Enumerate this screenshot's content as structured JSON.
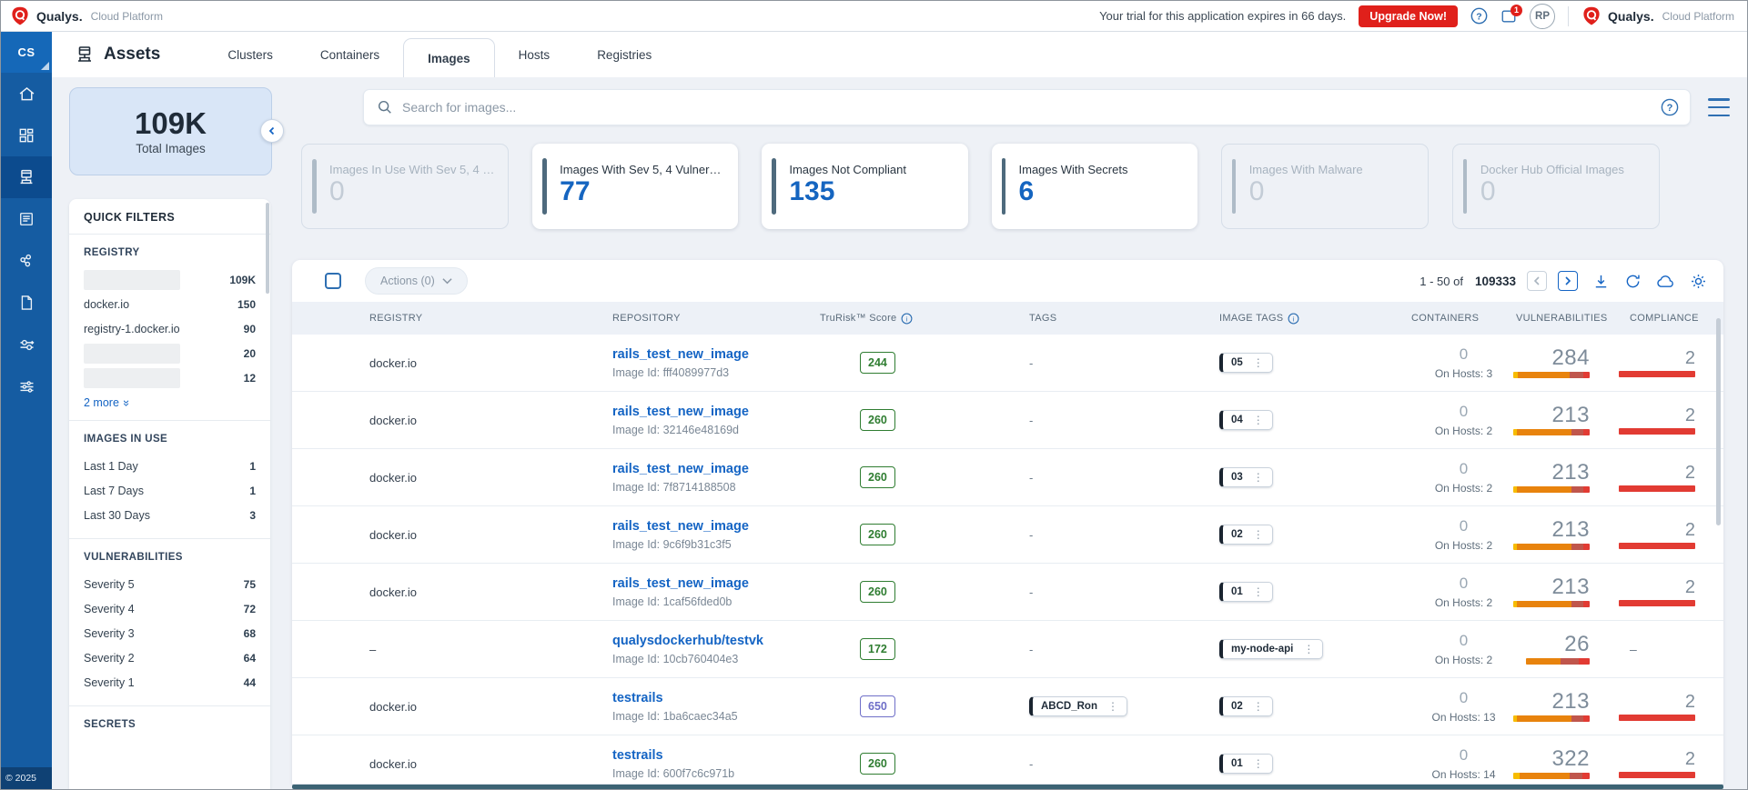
{
  "top_bar": {
    "brand": "Qualys.",
    "brand_suffix": "Cloud Platform",
    "trial_text": "Your trial for this application expires in 66 days.",
    "upgrade_label": "Upgrade Now!",
    "notification_count": "1",
    "avatar_initials": "RP",
    "brand_right": "Qualys.",
    "brand_right_suffix": "Cloud Platform"
  },
  "sidebar": {
    "module_label": "CS",
    "copyright": "© 2025",
    "items": [
      "home",
      "dashboard",
      "assets",
      "reports",
      "policies",
      "documents",
      "pipeline",
      "configurations"
    ]
  },
  "page_header": {
    "title": "Assets",
    "tabs": [
      {
        "label": "Clusters",
        "active": false
      },
      {
        "label": "Containers",
        "active": false
      },
      {
        "label": "Images",
        "active": true
      },
      {
        "label": "Hosts",
        "active": false
      },
      {
        "label": "Registries",
        "active": false
      }
    ]
  },
  "summary": {
    "total_value": "109K",
    "total_label": "Total Images"
  },
  "search": {
    "placeholder": "Search for images..."
  },
  "stat_cards": [
    {
      "label": "Images In Use With Sev 5, 4 …",
      "value": "0",
      "muted": true
    },
    {
      "label": "Images With Sev 5, 4 Vulner…",
      "value": "77",
      "muted": false
    },
    {
      "label": "Images Not Compliant",
      "value": "135",
      "muted": false
    },
    {
      "label": "Images With Secrets",
      "value": "6",
      "muted": false
    },
    {
      "label": "Images With Malware",
      "value": "0",
      "muted": true
    },
    {
      "label": "Docker Hub Official Images",
      "value": "0",
      "muted": true
    }
  ],
  "quick_filters": {
    "title": "QUICK FILTERS",
    "sections": [
      {
        "title": "REGISTRY",
        "items": [
          {
            "label": "",
            "redacted": true,
            "count": "109K"
          },
          {
            "label": "docker.io",
            "redacted": false,
            "count": "150"
          },
          {
            "label": "registry-1.docker.io",
            "redacted": false,
            "count": "90"
          },
          {
            "label": "",
            "redacted": true,
            "count": "20"
          },
          {
            "label": "",
            "redacted": true,
            "count": "12"
          }
        ],
        "more_label": "2 more"
      },
      {
        "title": "IMAGES IN USE",
        "items": [
          {
            "label": "Last 1 Day",
            "redacted": false,
            "count": "1"
          },
          {
            "label": "Last 7 Days",
            "redacted": false,
            "count": "1"
          },
          {
            "label": "Last 30 Days",
            "redacted": false,
            "count": "3"
          }
        ]
      },
      {
        "title": "VULNERABILITIES",
        "items": [
          {
            "label": "Severity 5",
            "redacted": false,
            "count": "75"
          },
          {
            "label": "Severity 4",
            "redacted": false,
            "count": "72"
          },
          {
            "label": "Severity 3",
            "redacted": false,
            "count": "68"
          },
          {
            "label": "Severity 2",
            "redacted": false,
            "count": "64"
          },
          {
            "label": "Severity 1",
            "redacted": false,
            "count": "44"
          }
        ]
      },
      {
        "title": "SECRETS",
        "items": []
      }
    ]
  },
  "table": {
    "actions_label": "Actions (0)",
    "pagination": {
      "range": "1 - 50 of",
      "total": "109333"
    },
    "columns": [
      {
        "label": "REGISTRY",
        "info": false
      },
      {
        "label": "REPOSITORY",
        "info": false
      },
      {
        "label": "TruRisk™ Score",
        "info": true
      },
      {
        "label": "TAGS",
        "info": false
      },
      {
        "label": "IMAGE TAGS",
        "info": true
      },
      {
        "label": "CONTAINERS",
        "info": false
      },
      {
        "label": "VULNERABILITIES",
        "info": false
      },
      {
        "label": "COMPLIANCE",
        "info": false
      }
    ],
    "rows": [
      {
        "registry": "docker.io",
        "repository": "rails_test_new_image",
        "image_id": "Image Id: fff4089977d3",
        "score": "244",
        "score_color": "green",
        "tag_chip": null,
        "tags_dash": "-",
        "image_tag": "05",
        "containers": "0",
        "on_hosts": "On Hosts: 3",
        "vulns": "284",
        "vuln_bar": [
          [
            "#F7BC00",
            5
          ],
          [
            "#E8830D",
            57
          ],
          [
            "#C0564C",
            15
          ],
          [
            "#E23B33",
            7
          ]
        ],
        "compliance": "2"
      },
      {
        "registry": "docker.io",
        "repository": "rails_test_new_image",
        "image_id": "Image Id: 32146e48169d",
        "score": "260",
        "score_color": "green",
        "tag_chip": null,
        "tags_dash": "-",
        "image_tag": "04",
        "containers": "0",
        "on_hosts": "On Hosts: 2",
        "vulns": "213",
        "vuln_bar": [
          [
            "#F7BC00",
            4
          ],
          [
            "#E8830D",
            60
          ],
          [
            "#C0564C",
            13
          ],
          [
            "#E23B33",
            7
          ]
        ],
        "compliance": "2"
      },
      {
        "registry": "docker.io",
        "repository": "rails_test_new_image",
        "image_id": "Image Id: 7f8714188508",
        "score": "260",
        "score_color": "green",
        "tag_chip": null,
        "tags_dash": "-",
        "image_tag": "03",
        "containers": "0",
        "on_hosts": "On Hosts: 2",
        "vulns": "213",
        "vuln_bar": [
          [
            "#F7BC00",
            4
          ],
          [
            "#E8830D",
            60
          ],
          [
            "#C0564C",
            13
          ],
          [
            "#E23B33",
            7
          ]
        ],
        "compliance": "2"
      },
      {
        "registry": "docker.io",
        "repository": "rails_test_new_image",
        "image_id": "Image Id: 9c6f9b31c3f5",
        "score": "260",
        "score_color": "green",
        "tag_chip": null,
        "tags_dash": "-",
        "image_tag": "02",
        "containers": "0",
        "on_hosts": "On Hosts: 2",
        "vulns": "213",
        "vuln_bar": [
          [
            "#F7BC00",
            4
          ],
          [
            "#E8830D",
            60
          ],
          [
            "#C0564C",
            13
          ],
          [
            "#E23B33",
            7
          ]
        ],
        "compliance": "2"
      },
      {
        "registry": "docker.io",
        "repository": "rails_test_new_image",
        "image_id": "Image Id: 1caf56fded0b",
        "score": "260",
        "score_color": "green",
        "tag_chip": null,
        "tags_dash": "-",
        "image_tag": "01",
        "containers": "0",
        "on_hosts": "On Hosts: 2",
        "vulns": "213",
        "vuln_bar": [
          [
            "#F7BC00",
            4
          ],
          [
            "#E8830D",
            60
          ],
          [
            "#C0564C",
            13
          ],
          [
            "#E23B33",
            7
          ]
        ],
        "compliance": "2"
      },
      {
        "registry": "–",
        "repository": "qualysdockerhub/testvk",
        "image_id": "Image Id: 10cb760404e3",
        "score": "172",
        "score_color": "green",
        "tag_chip": null,
        "tags_dash": "-",
        "image_tag": "my-node-api",
        "containers": "0",
        "on_hosts": "On Hosts: 2",
        "vulns": "26",
        "vuln_bar": [
          [
            "#E8830D",
            38
          ],
          [
            "#C0564C",
            20
          ],
          [
            "#E23B33",
            12
          ]
        ],
        "compliance": "–"
      },
      {
        "registry": "docker.io",
        "repository": "testrails",
        "image_id": "Image Id: 1ba6caec34a5",
        "score": "650",
        "score_color": "purple",
        "tag_chip": "ABCD_Ron",
        "tags_dash": "",
        "image_tag": "02",
        "containers": "0",
        "on_hosts": "On Hosts: 13",
        "vulns": "213",
        "vuln_bar": [
          [
            "#F7BC00",
            4
          ],
          [
            "#E8830D",
            60
          ],
          [
            "#C0564C",
            13
          ],
          [
            "#E23B33",
            7
          ]
        ],
        "compliance": "2"
      },
      {
        "registry": "docker.io",
        "repository": "testrails",
        "image_id": "Image Id: 600f7c6c971b",
        "score": "260",
        "score_color": "green",
        "tag_chip": null,
        "tags_dash": "-",
        "image_tag": "01",
        "containers": "0",
        "on_hosts": "On Hosts: 14",
        "vulns": "322",
        "vuln_bar": [
          [
            "#F7BC00",
            7
          ],
          [
            "#E8830D",
            55
          ],
          [
            "#C0564C",
            14
          ],
          [
            "#E23B33",
            8
          ]
        ],
        "compliance": "2"
      }
    ]
  }
}
